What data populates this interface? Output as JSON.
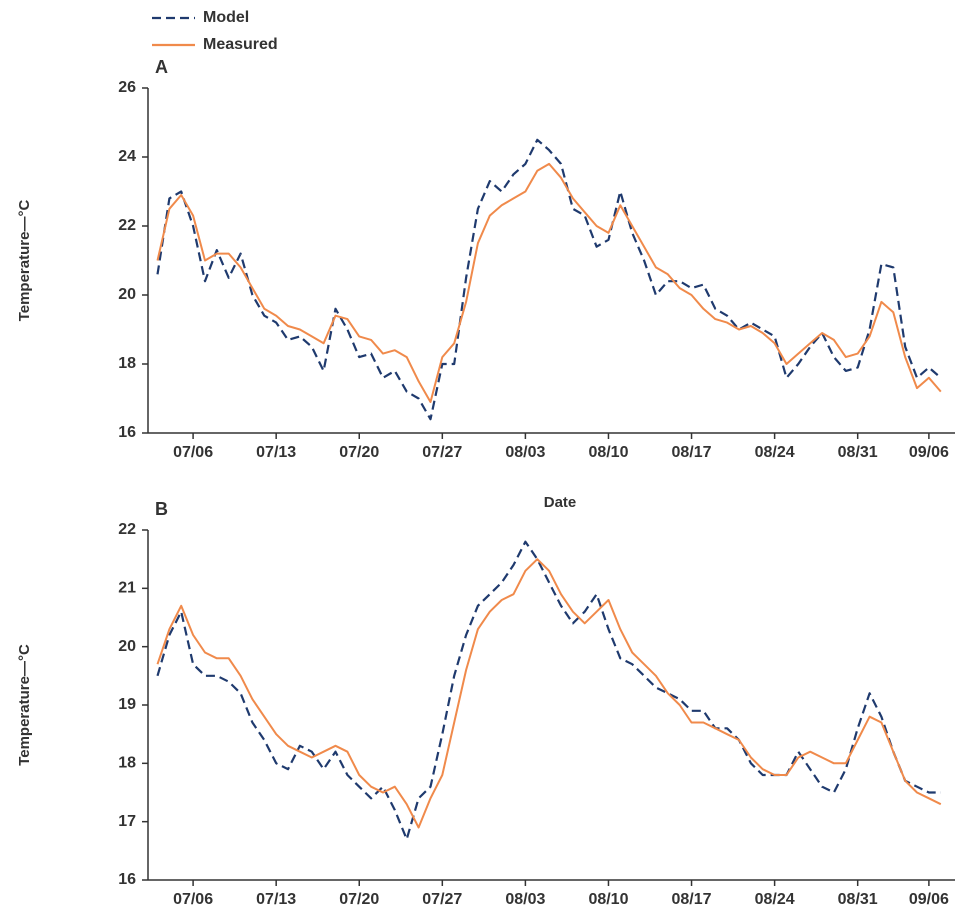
{
  "chart_data": [
    {
      "type": "line",
      "title": "A",
      "x_label": "Date",
      "y_label": "Temperature—°C",
      "legend": "top-left",
      "x": [
        3,
        4,
        5,
        6,
        7,
        8,
        9,
        10,
        11,
        12,
        13,
        14,
        15,
        16,
        17,
        18,
        19,
        20,
        21,
        22,
        23,
        24,
        25,
        26,
        27,
        28,
        29,
        30,
        31,
        32,
        33,
        34,
        35,
        36,
        37,
        38,
        39,
        40,
        41,
        42,
        43,
        44,
        45,
        46,
        47,
        48,
        49,
        50,
        51,
        52,
        53,
        54,
        55,
        56,
        57,
        58,
        59,
        60,
        61,
        62,
        63,
        64,
        65,
        66,
        67,
        68,
        69
      ],
      "xlim": [
        2.2,
        70.2
      ],
      "xticks": [
        {
          "value": 6,
          "label": "07/06"
        },
        {
          "value": 13,
          "label": "07/13"
        },
        {
          "value": 20,
          "label": "07/20"
        },
        {
          "value": 27,
          "label": "07/27"
        },
        {
          "value": 34,
          "label": "08/03"
        },
        {
          "value": 41,
          "label": "08/10"
        },
        {
          "value": 48,
          "label": "08/17"
        },
        {
          "value": 55,
          "label": "08/24"
        },
        {
          "value": 62,
          "label": "08/31"
        },
        {
          "value": 68,
          "label": "09/06"
        }
      ],
      "ylim": [
        16,
        26
      ],
      "yticks": [
        16,
        18,
        20,
        22,
        24,
        26
      ],
      "series": [
        {
          "name": "Model",
          "color": "#1f3a6e",
          "dashed": true,
          "values": [
            20.6,
            22.8,
            23.0,
            22.0,
            20.4,
            21.3,
            20.5,
            21.2,
            20.0,
            19.4,
            19.2,
            18.7,
            18.8,
            18.5,
            17.8,
            19.6,
            19.0,
            18.2,
            18.3,
            17.6,
            17.8,
            17.2,
            17.0,
            16.4,
            18.0,
            18.0,
            20.5,
            22.5,
            23.3,
            23.0,
            23.5,
            23.8,
            24.5,
            24.2,
            23.8,
            22.5,
            22.3,
            21.4,
            21.6,
            23.0,
            21.8,
            21.0,
            20.0,
            20.4,
            20.4,
            20.2,
            20.3,
            19.6,
            19.4,
            19.0,
            19.2,
            19.0,
            18.8,
            17.6,
            18.0,
            18.5,
            18.9,
            18.2,
            17.8,
            17.9,
            19.0,
            20.9,
            20.8,
            18.5,
            17.6,
            17.9,
            17.6
          ]
        },
        {
          "name": "Measured",
          "color": "#f08a4b",
          "dashed": false,
          "values": [
            21.0,
            22.5,
            22.9,
            22.3,
            21.0,
            21.2,
            21.2,
            20.8,
            20.2,
            19.6,
            19.4,
            19.1,
            19.0,
            18.8,
            18.6,
            19.4,
            19.3,
            18.8,
            18.7,
            18.3,
            18.4,
            18.2,
            17.5,
            16.9,
            18.2,
            18.6,
            19.8,
            21.5,
            22.3,
            22.6,
            22.8,
            23.0,
            23.6,
            23.8,
            23.4,
            22.8,
            22.4,
            22.0,
            21.8,
            22.6,
            22.0,
            21.4,
            20.8,
            20.6,
            20.2,
            20.0,
            19.6,
            19.3,
            19.2,
            19.0,
            19.1,
            18.9,
            18.6,
            18.0,
            18.3,
            18.6,
            18.9,
            18.7,
            18.2,
            18.3,
            18.8,
            19.8,
            19.5,
            18.2,
            17.3,
            17.6,
            17.2
          ]
        }
      ]
    },
    {
      "type": "line",
      "title": "B",
      "y_label": "Temperature—°C",
      "x": [
        3,
        4,
        5,
        6,
        7,
        8,
        9,
        10,
        11,
        12,
        13,
        14,
        15,
        16,
        17,
        18,
        19,
        20,
        21,
        22,
        23,
        24,
        25,
        26,
        27,
        28,
        29,
        30,
        31,
        32,
        33,
        34,
        35,
        36,
        37,
        38,
        39,
        40,
        41,
        42,
        43,
        44,
        45,
        46,
        47,
        48,
        49,
        50,
        51,
        52,
        53,
        54,
        55,
        56,
        57,
        58,
        59,
        60,
        61,
        62,
        63,
        64,
        65,
        66,
        67,
        68,
        69
      ],
      "xlim": [
        2.2,
        70.2
      ],
      "xticks": [
        {
          "value": 6,
          "label": "07/06"
        },
        {
          "value": 13,
          "label": "07/13"
        },
        {
          "value": 20,
          "label": "07/20"
        },
        {
          "value": 27,
          "label": "07/27"
        },
        {
          "value": 34,
          "label": "08/03"
        },
        {
          "value": 41,
          "label": "08/10"
        },
        {
          "value": 48,
          "label": "08/17"
        },
        {
          "value": 55,
          "label": "08/24"
        },
        {
          "value": 62,
          "label": "08/31"
        },
        {
          "value": 68,
          "label": "09/06"
        }
      ],
      "ylim": [
        16,
        22
      ],
      "yticks": [
        16,
        17,
        18,
        19,
        20,
        21,
        22
      ],
      "series": [
        {
          "color": "#1f3a6e",
          "dashed": true,
          "values": [
            19.5,
            20.2,
            20.6,
            19.7,
            19.5,
            19.5,
            19.4,
            19.2,
            18.7,
            18.4,
            18.0,
            17.9,
            18.3,
            18.2,
            17.9,
            18.2,
            17.8,
            17.6,
            17.4,
            17.6,
            17.2,
            16.7,
            17.4,
            17.6,
            18.5,
            19.5,
            20.2,
            20.7,
            20.9,
            21.1,
            21.4,
            21.8,
            21.5,
            21.1,
            20.7,
            20.4,
            20.6,
            20.9,
            20.3,
            19.8,
            19.7,
            19.5,
            19.3,
            19.2,
            19.1,
            18.9,
            18.9,
            18.6,
            18.6,
            18.4,
            18.0,
            17.8,
            17.8,
            17.8,
            18.2,
            17.9,
            17.6,
            17.5,
            17.9,
            18.6,
            19.2,
            18.8,
            18.2,
            17.7,
            17.6,
            17.5,
            17.5
          ]
        },
        {
          "color": "#f08a4b",
          "dashed": false,
          "values": [
            19.7,
            20.3,
            20.7,
            20.2,
            19.9,
            19.8,
            19.8,
            19.5,
            19.1,
            18.8,
            18.5,
            18.3,
            18.2,
            18.1,
            18.2,
            18.3,
            18.2,
            17.8,
            17.6,
            17.5,
            17.6,
            17.3,
            16.9,
            17.4,
            17.8,
            18.7,
            19.6,
            20.3,
            20.6,
            20.8,
            20.9,
            21.3,
            21.5,
            21.3,
            20.9,
            20.6,
            20.4,
            20.6,
            20.8,
            20.3,
            19.9,
            19.7,
            19.5,
            19.2,
            19.0,
            18.7,
            18.7,
            18.6,
            18.5,
            18.4,
            18.1,
            17.9,
            17.8,
            17.8,
            18.1,
            18.2,
            18.1,
            18.0,
            18.0,
            18.4,
            18.8,
            18.7,
            18.2,
            17.7,
            17.5,
            17.4,
            17.3
          ]
        }
      ]
    }
  ]
}
